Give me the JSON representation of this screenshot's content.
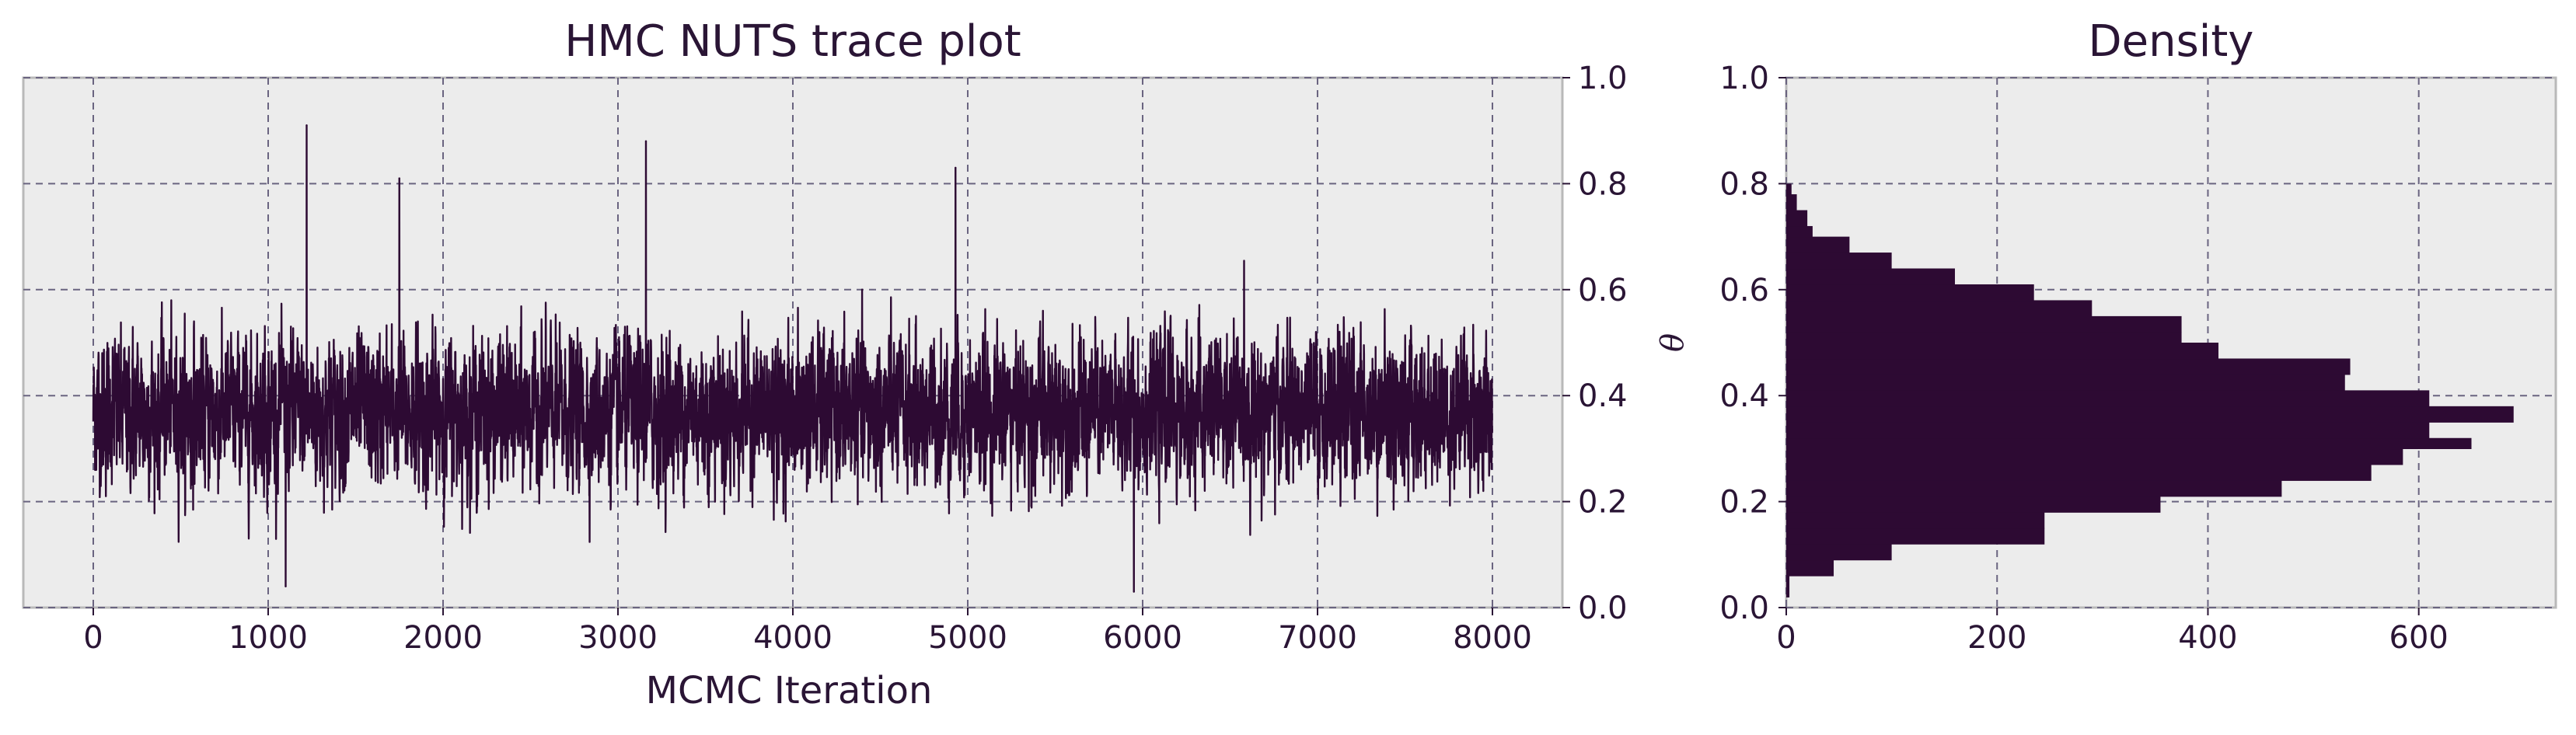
{
  "colors": {
    "series": "#2d0a33",
    "axes_bg": "#ececec",
    "grid": "#6a6480",
    "text": "#2a1535"
  },
  "chart_data": [
    {
      "type": "line",
      "title": "HMC NUTS trace plot",
      "xlabel": "MCMC Iteration",
      "ylabel": "",
      "xlim": [
        -400,
        8400
      ],
      "ylim": [
        0.0,
        1.0
      ],
      "x_ticks": [
        0,
        1000,
        2000,
        3000,
        4000,
        5000,
        6000,
        7000,
        8000
      ],
      "x_tick_labels": [
        "0",
        "1000",
        "2000",
        "3000",
        "4000",
        "5000",
        "6000",
        "7000",
        "8000"
      ],
      "y_ticks": [
        0.0,
        0.2,
        0.4,
        0.6,
        0.8,
        1.0
      ],
      "y_tick_labels": [
        "0.0",
        "0.2",
        "0.4",
        "0.6",
        "0.8",
        "1.0"
      ],
      "y_axis_side": "right",
      "grid": true,
      "series": [
        {
          "n_samples": 8000,
          "approx_mean": 0.37,
          "approx_sd": 0.11,
          "notable_peaks": [
            {
              "x": 1220,
              "y": 0.91
            },
            {
              "x": 3160,
              "y": 0.88
            },
            {
              "x": 4930,
              "y": 0.83
            },
            {
              "x": 1750,
              "y": 0.81
            },
            {
              "x": 5950,
              "y": 0.03
            },
            {
              "x": 1100,
              "y": 0.04
            }
          ]
        }
      ]
    },
    {
      "type": "bar",
      "orientation": "horizontal",
      "title": "Density",
      "xlabel": "",
      "ylabel": "θ",
      "xlim": [
        0,
        730
      ],
      "ylim": [
        0.0,
        1.0
      ],
      "x_ticks": [
        0,
        200,
        400,
        600
      ],
      "x_tick_labels": [
        "0",
        "200",
        "400",
        "600"
      ],
      "y_ticks": [
        0.0,
        0.2,
        0.4,
        0.6,
        0.8,
        1.0
      ],
      "y_tick_labels": [
        "0.0",
        "0.2",
        "0.4",
        "0.6",
        "0.8",
        "1.0"
      ],
      "grid": true,
      "bins": [
        {
          "lo": 0.02,
          "hi": 0.06,
          "count": 3
        },
        {
          "lo": 0.06,
          "hi": 0.09,
          "count": 45
        },
        {
          "lo": 0.09,
          "hi": 0.12,
          "count": 100
        },
        {
          "lo": 0.12,
          "hi": 0.15,
          "count": 245
        },
        {
          "lo": 0.15,
          "hi": 0.18,
          "count": 245
        },
        {
          "lo": 0.18,
          "hi": 0.21,
          "count": 355
        },
        {
          "lo": 0.21,
          "hi": 0.24,
          "count": 470
        },
        {
          "lo": 0.24,
          "hi": 0.27,
          "count": 555
        },
        {
          "lo": 0.27,
          "hi": 0.3,
          "count": 585
        },
        {
          "lo": 0.3,
          "hi": 0.32,
          "count": 650
        },
        {
          "lo": 0.32,
          "hi": 0.35,
          "count": 610
        },
        {
          "lo": 0.35,
          "hi": 0.38,
          "count": 690
        },
        {
          "lo": 0.38,
          "hi": 0.41,
          "count": 610
        },
        {
          "lo": 0.41,
          "hi": 0.44,
          "count": 530
        },
        {
          "lo": 0.44,
          "hi": 0.47,
          "count": 535
        },
        {
          "lo": 0.47,
          "hi": 0.5,
          "count": 410
        },
        {
          "lo": 0.5,
          "hi": 0.52,
          "count": 375
        },
        {
          "lo": 0.52,
          "hi": 0.55,
          "count": 375
        },
        {
          "lo": 0.55,
          "hi": 0.58,
          "count": 290
        },
        {
          "lo": 0.58,
          "hi": 0.61,
          "count": 235
        },
        {
          "lo": 0.61,
          "hi": 0.64,
          "count": 160
        },
        {
          "lo": 0.64,
          "hi": 0.67,
          "count": 100
        },
        {
          "lo": 0.67,
          "hi": 0.7,
          "count": 60
        },
        {
          "lo": 0.7,
          "hi": 0.72,
          "count": 25
        },
        {
          "lo": 0.72,
          "hi": 0.75,
          "count": 20
        },
        {
          "lo": 0.75,
          "hi": 0.78,
          "count": 10
        },
        {
          "lo": 0.78,
          "hi": 0.8,
          "count": 5
        }
      ]
    }
  ]
}
